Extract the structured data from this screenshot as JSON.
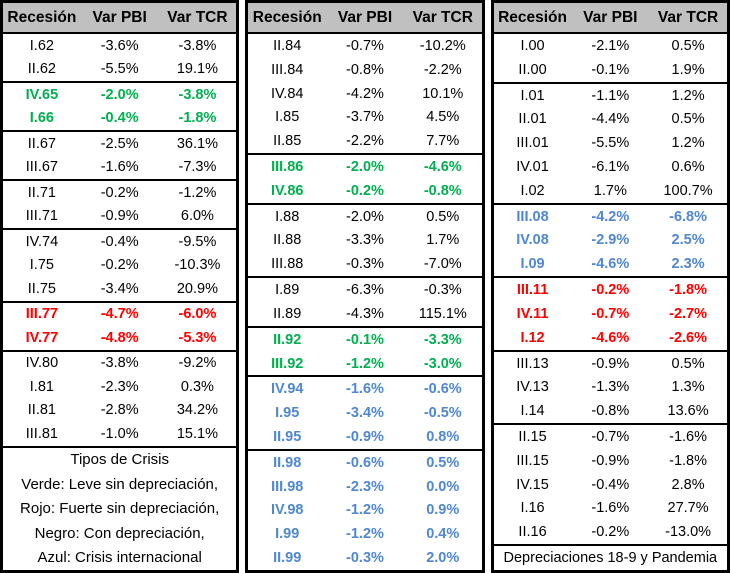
{
  "colors": {
    "black": "#000000",
    "green": "#00B050",
    "red": "#FF0000",
    "blue": "#4F87D3",
    "header_bg": "#C0C0C0",
    "border": "#000000"
  },
  "chart_data": {
    "type": "table",
    "columns": [
      "Recesión",
      "Var PBI",
      "Var TCR"
    ],
    "panels": [
      {
        "groups": [
          {
            "crisis_type": "negro",
            "color": "black",
            "rows": [
              [
                "I.62",
                "-3.6%",
                "-3.8%"
              ],
              [
                "II.62",
                "-5.5%",
                "19.1%"
              ]
            ]
          },
          {
            "crisis_type": "verde",
            "color": "green",
            "rows": [
              [
                "IV.65",
                "-2.0%",
                "-3.8%"
              ],
              [
                "I.66",
                "-0.4%",
                "-1.8%"
              ]
            ]
          },
          {
            "crisis_type": "negro",
            "color": "black",
            "rows": [
              [
                "II.67",
                "-2.5%",
                "36.1%"
              ],
              [
                "III.67",
                "-1.6%",
                "-7.3%"
              ]
            ]
          },
          {
            "crisis_type": "negro",
            "color": "black",
            "rows": [
              [
                "II.71",
                "-0.2%",
                "-1.2%"
              ],
              [
                "III.71",
                "-0.9%",
                "6.0%"
              ]
            ]
          },
          {
            "crisis_type": "negro",
            "color": "black",
            "rows": [
              [
                "IV.74",
                "-0.4%",
                "-9.5%"
              ],
              [
                "I.75",
                "-0.2%",
                "-10.3%"
              ],
              [
                "II.75",
                "-3.4%",
                "20.9%"
              ]
            ]
          },
          {
            "crisis_type": "rojo",
            "color": "red",
            "rows": [
              [
                "III.77",
                "-4.7%",
                "-6.0%"
              ],
              [
                "IV.77",
                "-4.8%",
                "-5.3%"
              ]
            ]
          },
          {
            "crisis_type": "negro",
            "color": "black",
            "rows": [
              [
                "IV.80",
                "-3.8%",
                "-9.2%"
              ],
              [
                "I.81",
                "-2.3%",
                "0.3%"
              ],
              [
                "II.81",
                "-2.8%",
                "34.2%"
              ],
              [
                "III.81",
                "-1.0%",
                "15.1%"
              ]
            ]
          }
        ]
      },
      {
        "groups": [
          {
            "crisis_type": "negro",
            "color": "black",
            "rows": [
              [
                "II.84",
                "-0.7%",
                "-10.2%"
              ],
              [
                "III.84",
                "-0.8%",
                "-2.2%"
              ],
              [
                "IV.84",
                "-4.2%",
                "10.1%"
              ],
              [
                "I.85",
                "-3.7%",
                "4.5%"
              ],
              [
                "II.85",
                "-2.2%",
                "7.7%"
              ]
            ]
          },
          {
            "crisis_type": "verde",
            "color": "green",
            "rows": [
              [
                "III.86",
                "-2.0%",
                "-4.6%"
              ],
              [
                "IV.86",
                "-0.2%",
                "-0.8%"
              ]
            ]
          },
          {
            "crisis_type": "negro",
            "color": "black",
            "rows": [
              [
                "I.88",
                "-2.0%",
                "0.5%"
              ],
              [
                "II.88",
                "-3.3%",
                "1.7%"
              ],
              [
                "III.88",
                "-0.3%",
                "-7.0%"
              ]
            ]
          },
          {
            "crisis_type": "negro",
            "color": "black",
            "rows": [
              [
                "I.89",
                "-6.3%",
                "-0.3%"
              ],
              [
                "II.89",
                "-4.3%",
                "115.1%"
              ]
            ]
          },
          {
            "crisis_type": "verde",
            "color": "green",
            "rows": [
              [
                "II.92",
                "-0.1%",
                "-3.3%"
              ],
              [
                "III.92",
                "-1.2%",
                "-3.0%"
              ]
            ]
          },
          {
            "crisis_type": "azul",
            "color": "blue",
            "rows": [
              [
                "IV.94",
                "-1.6%",
                "-0.6%"
              ],
              [
                "I.95",
                "-3.4%",
                "-0.5%"
              ],
              [
                "II.95",
                "-0.9%",
                "0.8%"
              ]
            ]
          },
          {
            "crisis_type": "azul",
            "color": "blue",
            "rows": [
              [
                "II.98",
                "-0.6%",
                "0.5%"
              ],
              [
                "III.98",
                "-2.3%",
                "0.0%"
              ],
              [
                "IV.98",
                "-1.2%",
                "0.9%"
              ],
              [
                "I.99",
                "-1.2%",
                "0.4%"
              ],
              [
                "II.99",
                "-0.3%",
                "2.0%"
              ]
            ]
          }
        ]
      },
      {
        "groups": [
          {
            "crisis_type": "negro",
            "color": "black",
            "rows": [
              [
                "I.00",
                "-2.1%",
                "0.5%"
              ],
              [
                "II.00",
                "-0.1%",
                "1.9%"
              ]
            ]
          },
          {
            "crisis_type": "negro",
            "color": "black",
            "rows": [
              [
                "I.01",
                "-1.1%",
                "1.2%"
              ],
              [
                "II.01",
                "-4.4%",
                "0.5%"
              ],
              [
                "III.01",
                "-5.5%",
                "1.2%"
              ],
              [
                "IV.01",
                "-6.1%",
                "0.6%"
              ],
              [
                "I.02",
                "1.7%",
                "100.7%"
              ]
            ]
          },
          {
            "crisis_type": "azul",
            "color": "blue",
            "rows": [
              [
                "III.08",
                "-4.2%",
                "-6.8%"
              ],
              [
                "IV.08",
                "-2.9%",
                "2.5%"
              ],
              [
                "I.09",
                "-4.6%",
                "2.3%"
              ]
            ]
          },
          {
            "crisis_type": "rojo",
            "color": "red",
            "rows": [
              [
                "III.11",
                "-0.2%",
                "-1.8%"
              ],
              [
                "IV.11",
                "-0.7%",
                "-2.7%"
              ],
              [
                "I.12",
                "-4.6%",
                "-2.6%"
              ]
            ]
          },
          {
            "crisis_type": "negro",
            "color": "black",
            "rows": [
              [
                "III.13",
                "-0.9%",
                "0.5%"
              ],
              [
                "IV.13",
                "-1.3%",
                "1.3%"
              ],
              [
                "I.14",
                "-0.8%",
                "13.6%"
              ]
            ]
          },
          {
            "crisis_type": "negro",
            "color": "black",
            "rows": [
              [
                "II.15",
                "-0.7%",
                "-1.6%"
              ],
              [
                "III.15",
                "-0.9%",
                "-1.8%"
              ],
              [
                "IV.15",
                "-0.4%",
                "2.8%"
              ],
              [
                "I.16",
                "-1.6%",
                "27.7%"
              ],
              [
                "II.16",
                "-0.2%",
                "-13.0%"
              ]
            ]
          }
        ]
      }
    ],
    "legend": {
      "title": "Tipos de Crisis",
      "lines": [
        "Verde: Leve sin depreciación,",
        "Rojo: Fuerte sin depreciación,",
        "Negro: Con depreciación,",
        "Azul: Crisis internacional"
      ]
    },
    "footnote": "Depreciaciones 18-9 y Pandemia"
  }
}
